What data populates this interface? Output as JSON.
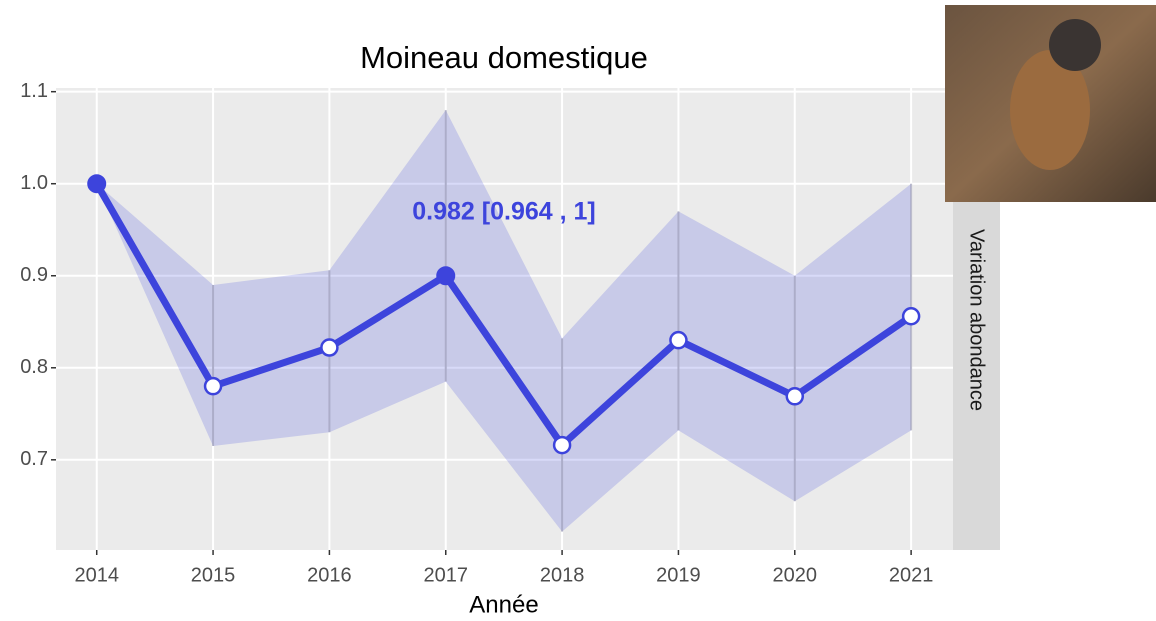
{
  "chart_data": {
    "type": "line",
    "title": "Moineau domestique",
    "x_label": "Année",
    "facet_label": "Variation abondance",
    "x": [
      2014,
      2015,
      2016,
      2017,
      2018,
      2019,
      2020,
      2021
    ],
    "values": [
      1.0,
      0.78,
      0.822,
      0.9,
      0.716,
      0.83,
      0.769,
      0.856
    ],
    "lower": [
      1.0,
      0.715,
      0.73,
      0.785,
      0.622,
      0.732,
      0.655,
      0.732
    ],
    "upper": [
      1.0,
      0.89,
      0.906,
      1.08,
      0.832,
      0.97,
      0.9,
      1.0
    ],
    "filled": [
      true,
      false,
      false,
      true,
      false,
      false,
      false,
      false
    ],
    "color": "#3d44dc",
    "annotation": "0.982  [0.964 , 1]",
    "xlim": [
      2013.65,
      2021.36
    ],
    "xticks": [
      2014,
      2015,
      2016,
      2017,
      2018,
      2019,
      2020,
      2021
    ],
    "ylim": [
      0.602,
      1.104
    ],
    "yticks": [
      {
        "value": 0.7,
        "label": "0.7"
      },
      {
        "value": 0.8,
        "label": "0.8"
      },
      {
        "value": 0.9,
        "label": "0.9"
      },
      {
        "value": 1.0,
        "label": "1.0"
      },
      {
        "value": 1.1,
        "label": "1.1"
      }
    ],
    "grid": true
  }
}
